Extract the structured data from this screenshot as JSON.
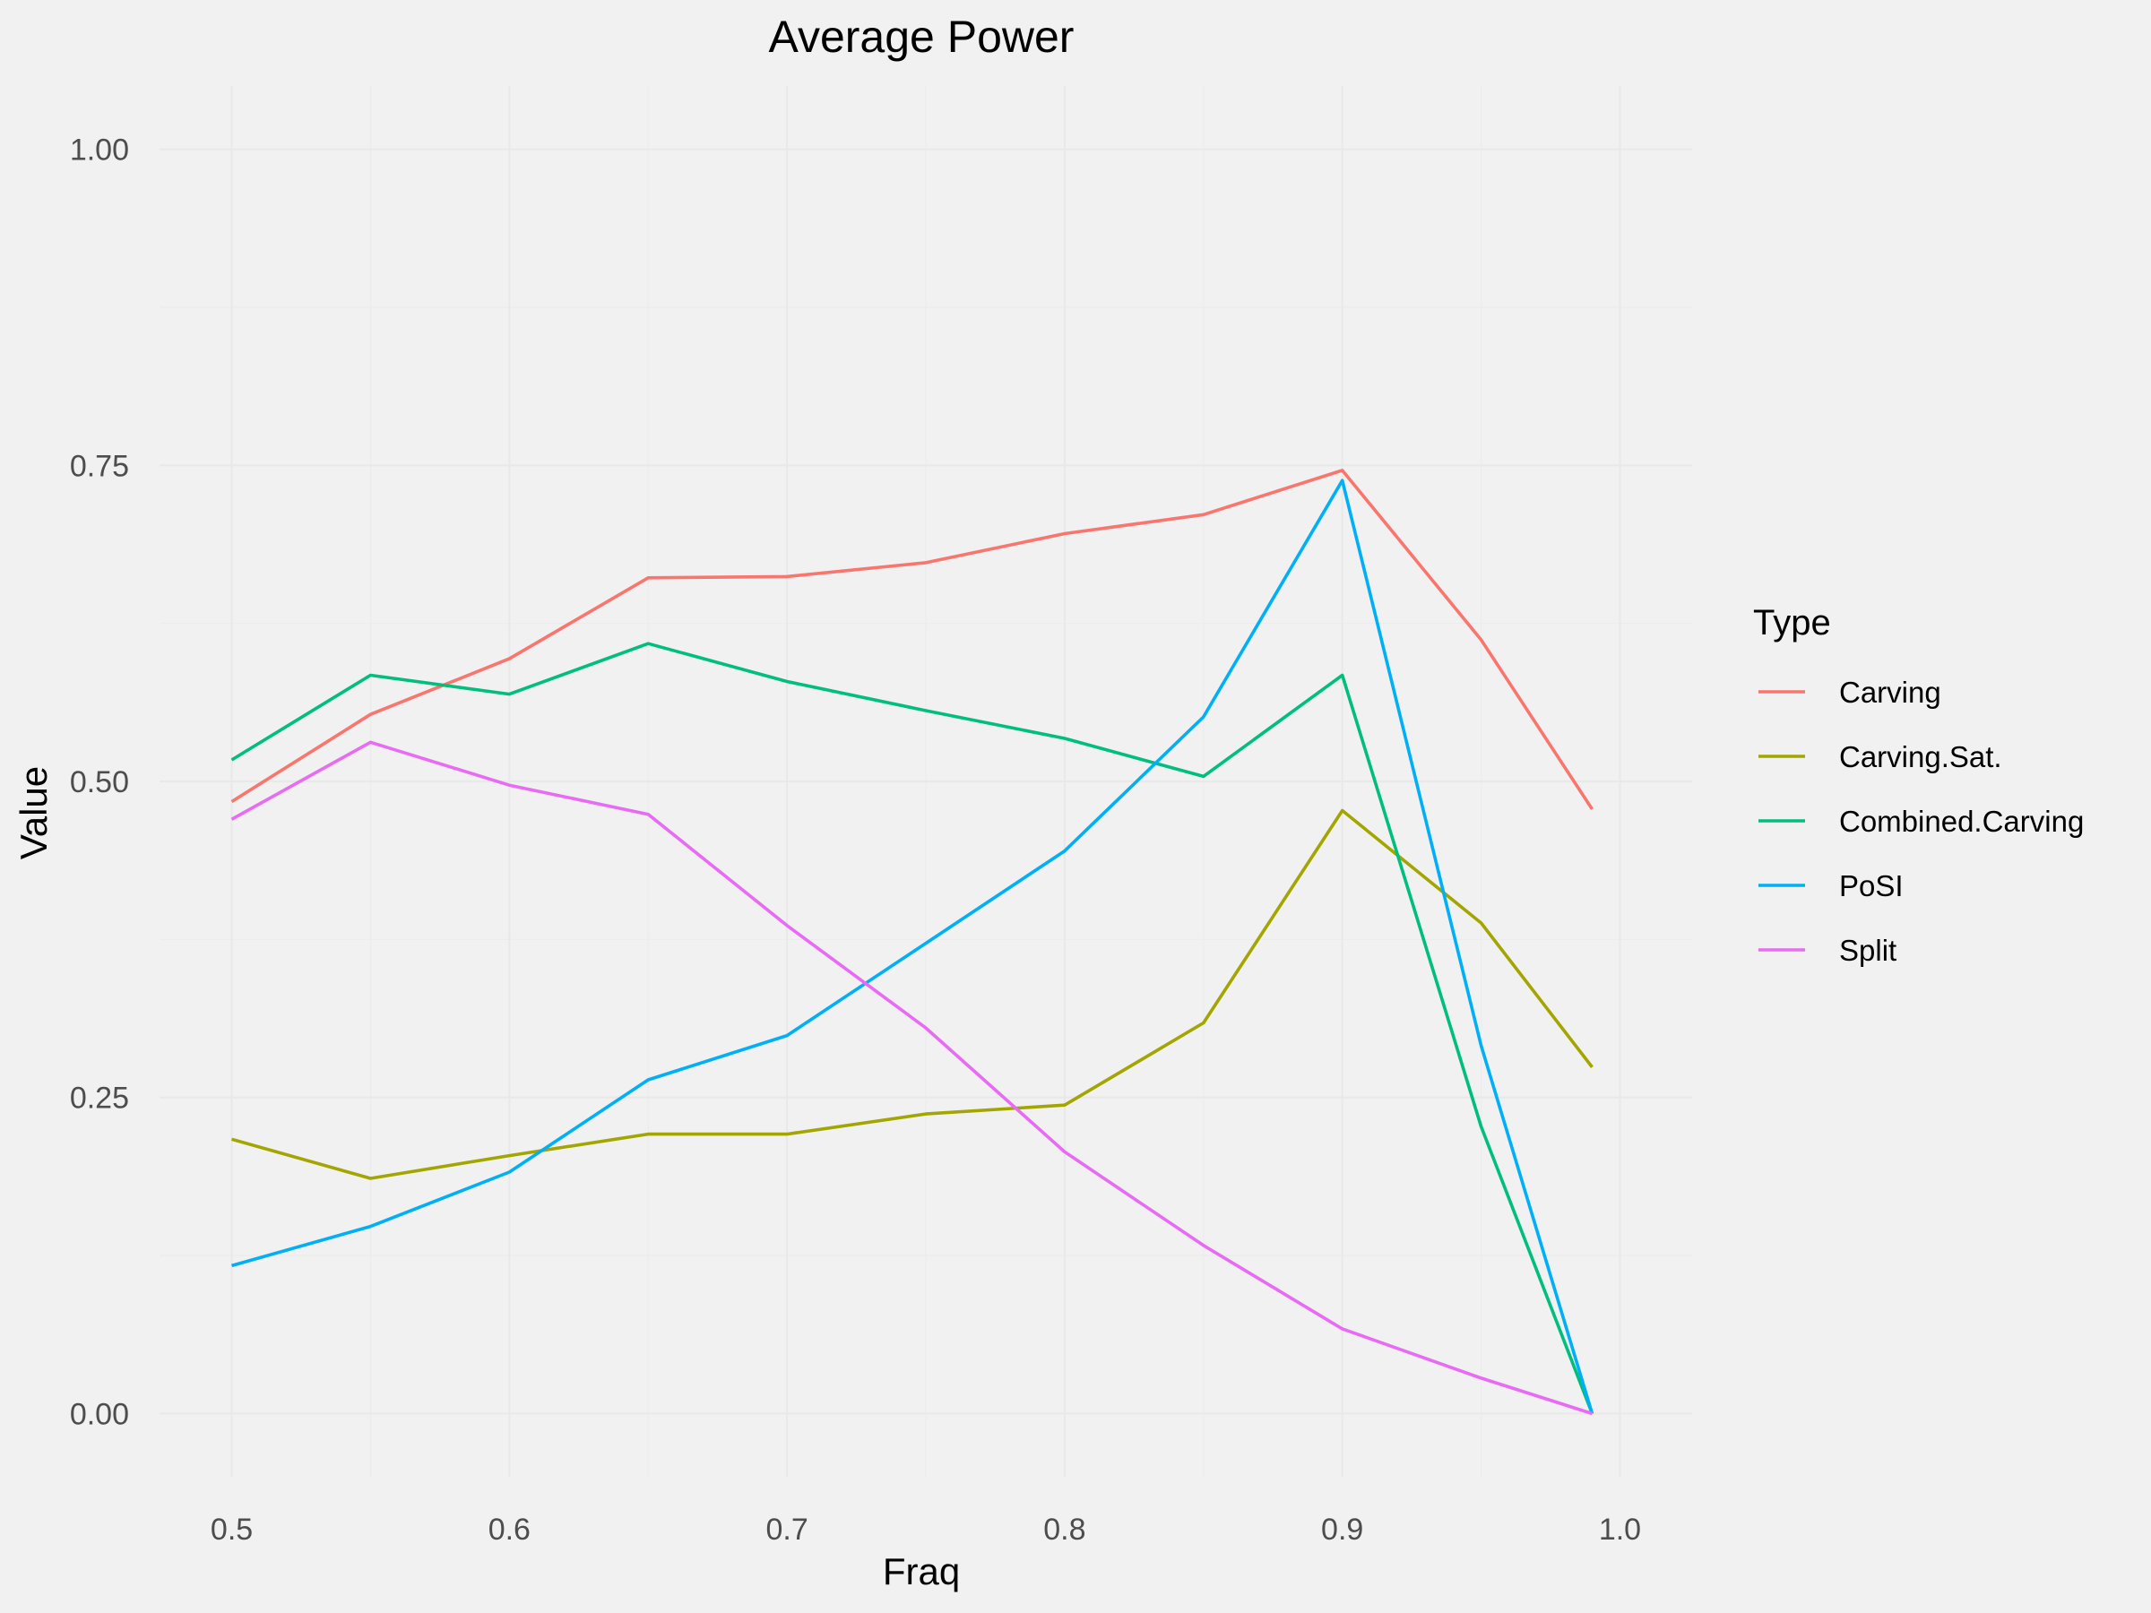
{
  "chart_data": {
    "type": "line",
    "title": "Average Power",
    "xlabel": "Fraq",
    "ylabel": "Value",
    "xlim": [
      0.474,
      1.026
    ],
    "ylim": [
      -0.05,
      1.05
    ],
    "xticks": [
      0.5,
      0.6,
      0.7,
      0.8,
      0.9,
      1.0
    ],
    "xtick_labels": [
      "0.5",
      "0.6",
      "0.7",
      "0.8",
      "0.9",
      "1.0"
    ],
    "yticks": [
      0,
      0.25,
      0.5,
      0.75,
      1.0
    ],
    "ytick_labels": [
      "0.00",
      "0.25",
      "0.50",
      "0.75",
      "1.00"
    ],
    "grid": true,
    "legend": {
      "title": "Type",
      "position": "right"
    },
    "x": [
      0.5,
      0.55,
      0.6,
      0.65,
      0.7,
      0.75,
      0.8,
      0.85,
      0.9,
      0.95,
      0.99
    ],
    "series": [
      {
        "name": "Carving",
        "color": "#F8766D",
        "values": [
          0.484,
          0.553,
          0.597,
          0.661,
          0.662,
          0.673,
          0.696,
          0.711,
          0.746,
          0.612,
          0.478
        ]
      },
      {
        "name": "Carving.Sat.",
        "color": "#A3A500",
        "values": [
          0.217,
          0.186,
          0.204,
          0.221,
          0.221,
          0.237,
          0.244,
          0.309,
          0.477,
          0.388,
          0.274
        ]
      },
      {
        "name": "Combined.Carving",
        "color": "#00BF7D",
        "values": [
          0.517,
          0.584,
          0.569,
          0.609,
          0.579,
          0.556,
          0.534,
          0.504,
          0.584,
          0.227,
          0.0
        ]
      },
      {
        "name": "PoSI",
        "color": "#00B0F6",
        "values": [
          0.117,
          0.148,
          0.191,
          0.264,
          0.299,
          0.372,
          0.445,
          0.551,
          0.738,
          0.291,
          0.0
        ]
      },
      {
        "name": "Split",
        "color": "#E76BF3",
        "values": [
          0.47,
          0.531,
          0.497,
          0.474,
          0.386,
          0.305,
          0.207,
          0.133,
          0.067,
          0.028,
          0.0
        ]
      }
    ]
  }
}
